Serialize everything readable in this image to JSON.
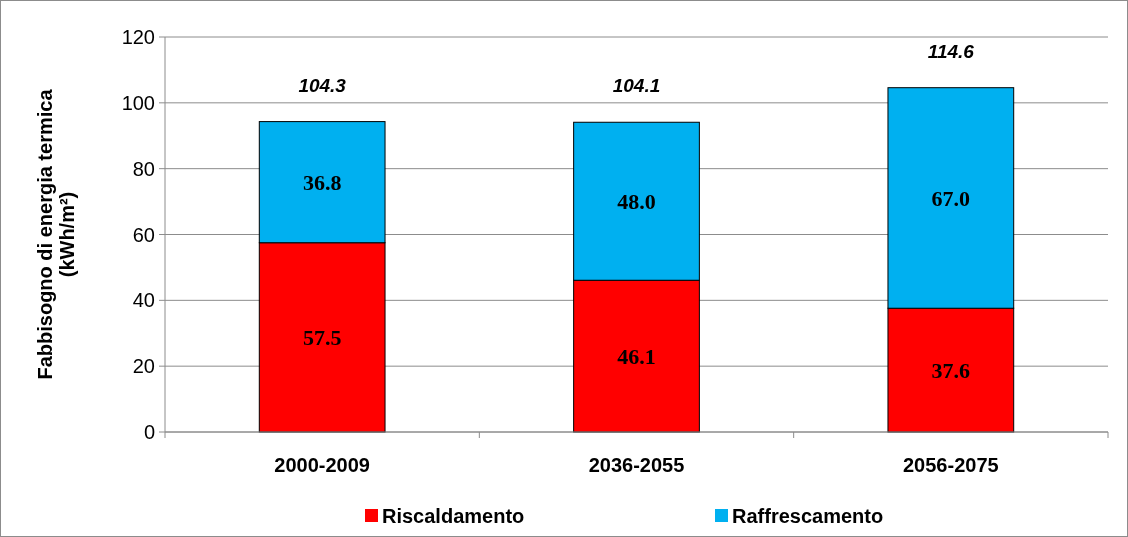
{
  "chart_data": {
    "type": "bar",
    "stacked": true,
    "categories": [
      "2000-2009",
      "2036-2055",
      "2056-2075"
    ],
    "series": [
      {
        "name": "Riscaldamento",
        "color": "#ff0000",
        "values": [
          57.5,
          46.1,
          37.6
        ],
        "value_labels": [
          "57.5",
          "46.1",
          "37.6"
        ]
      },
      {
        "name": "Raffrescamento",
        "color": "#00b0f0",
        "values": [
          36.8,
          48.0,
          67.0
        ],
        "value_labels": [
          "36.8",
          "48.0",
          "67.0"
        ]
      }
    ],
    "ylabel": "Fabbisogno di energia termica\n(kWh/m²)",
    "ylim": [
      0,
      120
    ],
    "yticks": [
      0,
      20,
      40,
      60,
      80,
      100,
      120
    ],
    "grid": "y",
    "legend": "bottom",
    "annotations": [
      "104.3",
      "104.1",
      "114.6"
    ]
  }
}
